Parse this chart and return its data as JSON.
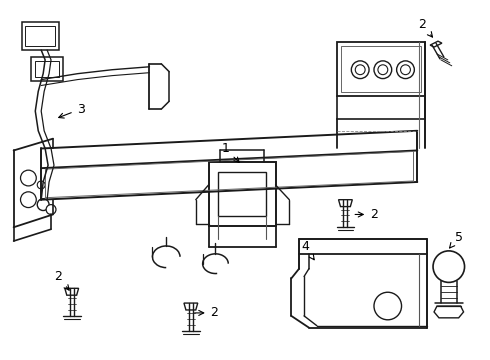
{
  "bg_color": "#ffffff",
  "line_color": "#1a1a1a",
  "lw": 0.9,
  "fig_width": 4.9,
  "fig_height": 3.6,
  "dpi": 100
}
